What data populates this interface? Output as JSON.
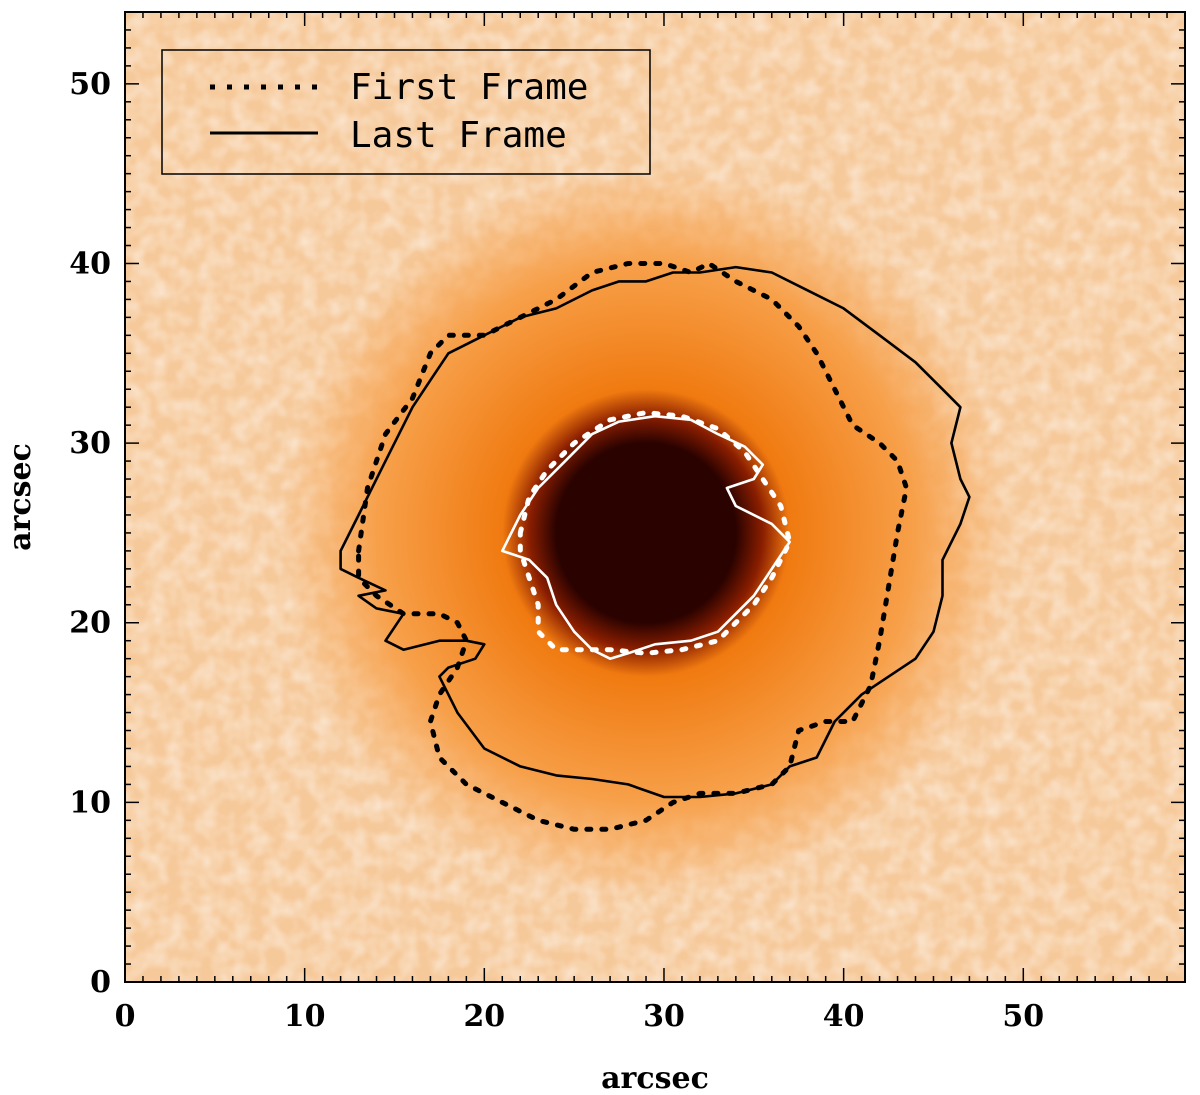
{
  "chart_data": {
    "type": "image-contour",
    "xlabel": "arcsec",
    "ylabel": "arcsec",
    "xlim": [
      0,
      59
    ],
    "ylim": [
      0,
      54
    ],
    "x_ticks": [
      0,
      10,
      20,
      30,
      40,
      50
    ],
    "y_ticks": [
      0,
      10,
      20,
      30,
      40,
      50
    ],
    "x_tick_labels": [
      "0",
      "10",
      "20",
      "30",
      "40",
      "50"
    ],
    "y_tick_labels": [
      "0",
      "10",
      "20",
      "30",
      "40",
      "50"
    ],
    "legend": {
      "position": "top-left",
      "entries": [
        {
          "label": "First Frame",
          "style": "dotted"
        },
        {
          "label": "Last Frame",
          "style": "solid"
        }
      ]
    },
    "image": {
      "description_colormap": "orange-to-black",
      "center": [
        29,
        25
      ],
      "umbra_radius": 5,
      "penumbra_radius": 15,
      "colors": {
        "bright": "#fbe3c8",
        "mid": "#f7a04a",
        "penumbra": "#f07a10",
        "umbra": "#2a0200"
      }
    },
    "series": [
      {
        "name": "First Frame penumbra",
        "style": "dotted",
        "color": "#000000",
        "points": [
          [
            13,
            24
          ],
          [
            13.5,
            27.5
          ],
          [
            14.5,
            30.5
          ],
          [
            16,
            32.5
          ],
          [
            17,
            35
          ],
          [
            18,
            36
          ],
          [
            20,
            36
          ],
          [
            22,
            37
          ],
          [
            24,
            38
          ],
          [
            26,
            39.5
          ],
          [
            28,
            40
          ],
          [
            30,
            40
          ],
          [
            31.5,
            39.5
          ],
          [
            32.5,
            40
          ],
          [
            34,
            39
          ],
          [
            36,
            38
          ],
          [
            37.5,
            36.5
          ],
          [
            38.5,
            35
          ],
          [
            39.5,
            33
          ],
          [
            40.5,
            31
          ],
          [
            42,
            30
          ],
          [
            43,
            29
          ],
          [
            43.5,
            27.5
          ],
          [
            43,
            25
          ],
          [
            42.5,
            22
          ],
          [
            42,
            19
          ],
          [
            41.5,
            16.5
          ],
          [
            40.5,
            14.5
          ],
          [
            39,
            14.5
          ],
          [
            37.5,
            14
          ],
          [
            37,
            12
          ],
          [
            36,
            11
          ],
          [
            34,
            10.5
          ],
          [
            32,
            10.5
          ],
          [
            30.5,
            10
          ],
          [
            29,
            9
          ],
          [
            27,
            8.5
          ],
          [
            25,
            8.5
          ],
          [
            23,
            9
          ],
          [
            21,
            10
          ],
          [
            19,
            11
          ],
          [
            17.5,
            12.5
          ],
          [
            17,
            14.5
          ],
          [
            17.5,
            16
          ],
          [
            18.5,
            17.5
          ],
          [
            19,
            19
          ],
          [
            18.5,
            20
          ],
          [
            17.5,
            20.5
          ],
          [
            15.5,
            20.5
          ],
          [
            14,
            21.5
          ],
          [
            13,
            22.5
          ],
          [
            13,
            24
          ]
        ]
      },
      {
        "name": "Last Frame penumbra",
        "style": "solid",
        "color": "#000000",
        "points": [
          [
            12,
            24
          ],
          [
            13,
            26
          ],
          [
            14,
            28
          ],
          [
            15,
            30
          ],
          [
            16,
            32
          ],
          [
            17,
            33.5
          ],
          [
            18,
            35
          ],
          [
            20,
            36
          ],
          [
            22,
            37
          ],
          [
            24,
            37.5
          ],
          [
            26,
            38.5
          ],
          [
            27.5,
            39
          ],
          [
            29,
            39
          ],
          [
            30.5,
            39.5
          ],
          [
            32,
            39.5
          ],
          [
            34,
            39.8
          ],
          [
            36,
            39.5
          ],
          [
            38,
            38.5
          ],
          [
            40,
            37.5
          ],
          [
            42,
            36
          ],
          [
            44,
            34.5
          ],
          [
            45.5,
            33
          ],
          [
            46.5,
            32
          ],
          [
            46,
            30
          ],
          [
            46.5,
            28
          ],
          [
            47,
            27
          ],
          [
            46.5,
            25.5
          ],
          [
            45.5,
            23.5
          ],
          [
            45.5,
            21.5
          ],
          [
            45,
            19.5
          ],
          [
            44,
            18
          ],
          [
            42.5,
            17
          ],
          [
            41,
            16
          ],
          [
            39.5,
            14.5
          ],
          [
            38.5,
            12.5
          ],
          [
            37,
            12
          ],
          [
            36,
            11
          ],
          [
            34,
            10.5
          ],
          [
            32,
            10.3
          ],
          [
            30,
            10.3
          ],
          [
            28,
            11
          ],
          [
            26,
            11.3
          ],
          [
            24,
            11.5
          ],
          [
            22,
            12
          ],
          [
            20,
            13
          ],
          [
            18.5,
            15
          ],
          [
            17.5,
            17
          ],
          [
            18,
            17.5
          ],
          [
            19.5,
            18
          ],
          [
            20,
            18.8
          ],
          [
            19,
            19
          ],
          [
            17.5,
            19
          ],
          [
            15.5,
            18.5
          ],
          [
            14.5,
            19
          ],
          [
            15.5,
            20.5
          ],
          [
            14,
            20.8
          ],
          [
            13,
            21.5
          ],
          [
            14.5,
            21.8
          ],
          [
            13,
            22.5
          ],
          [
            12,
            23
          ],
          [
            12,
            24
          ]
        ]
      },
      {
        "name": "First Frame umbra",
        "style": "dotted",
        "color": "#ffffff",
        "points": [
          [
            22,
            25
          ],
          [
            22.5,
            27
          ],
          [
            23.5,
            28.5
          ],
          [
            25,
            30
          ],
          [
            27,
            31.3
          ],
          [
            29,
            31.7
          ],
          [
            31,
            31.5
          ],
          [
            33,
            30.8
          ],
          [
            34.5,
            29.5
          ],
          [
            35.5,
            28
          ],
          [
            36.5,
            26.5
          ],
          [
            37,
            24.5
          ],
          [
            36,
            22.5
          ],
          [
            35,
            21
          ],
          [
            34,
            20
          ],
          [
            33,
            19
          ],
          [
            31,
            18.5
          ],
          [
            29,
            18.3
          ],
          [
            27,
            18.5
          ],
          [
            25.5,
            18.5
          ],
          [
            24,
            18.5
          ],
          [
            23,
            19.5
          ],
          [
            23,
            21
          ],
          [
            22.5,
            22.5
          ],
          [
            22,
            24
          ],
          [
            22,
            25
          ]
        ]
      },
      {
        "name": "Last Frame umbra",
        "style": "solid",
        "color": "#ffffff",
        "points": [
          [
            21,
            24
          ],
          [
            22,
            26
          ],
          [
            23,
            27.5
          ],
          [
            24.5,
            29
          ],
          [
            26,
            30.5
          ],
          [
            27.5,
            31.2
          ],
          [
            29.5,
            31.5
          ],
          [
            31.5,
            31.3
          ],
          [
            33,
            30.5
          ],
          [
            34.5,
            29.8
          ],
          [
            35.5,
            28.8
          ],
          [
            35,
            28
          ],
          [
            33.5,
            27.5
          ],
          [
            34,
            26.5
          ],
          [
            36,
            25.5
          ],
          [
            37,
            24.5
          ],
          [
            36,
            23
          ],
          [
            35,
            21.5
          ],
          [
            34,
            20.5
          ],
          [
            33,
            19.5
          ],
          [
            31.5,
            19
          ],
          [
            29.5,
            18.8
          ],
          [
            28,
            18.3
          ],
          [
            27,
            18
          ],
          [
            26,
            18.5
          ],
          [
            25,
            19.5
          ],
          [
            24,
            21
          ],
          [
            23.5,
            22.5
          ],
          [
            22.5,
            23.5
          ],
          [
            21,
            24
          ]
        ]
      }
    ]
  }
}
